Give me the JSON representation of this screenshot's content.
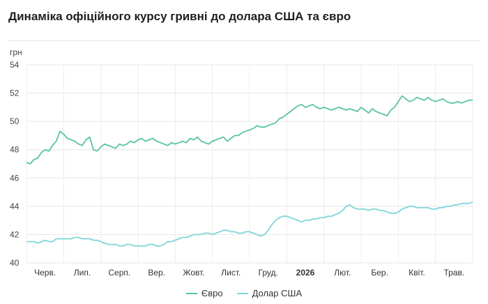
{
  "header": {
    "title": "Динаміка офіційного курсу гривні до долара США та євро"
  },
  "chart_data": {
    "type": "line",
    "title": "Динаміка офіційного курсу гривні до долара США та євро",
    "ylabel": "грн",
    "ylim": [
      40,
      54
    ],
    "yticks": [
      40,
      42,
      44,
      46,
      48,
      50,
      52,
      54
    ],
    "grid": true,
    "legend_position": "bottom",
    "x_months": [
      "Черв.",
      "Лип.",
      "Серп.",
      "Вер.",
      "Жовт.",
      "Лист.",
      "Груд.",
      "2026",
      "Лют.",
      "Бер.",
      "Квіт.",
      "Трав."
    ],
    "x": [
      0,
      0.1,
      0.2,
      0.3,
      0.4,
      0.5,
      0.6,
      0.7,
      0.8,
      0.9,
      1,
      1.1,
      1.2,
      1.3,
      1.4,
      1.5,
      1.6,
      1.7,
      1.8,
      1.9,
      2,
      2.1,
      2.2,
      2.3,
      2.4,
      2.5,
      2.6,
      2.7,
      2.8,
      2.9,
      3,
      3.1,
      3.2,
      3.3,
      3.4,
      3.5,
      3.6,
      3.7,
      3.8,
      3.9,
      4,
      4.1,
      4.2,
      4.3,
      4.4,
      4.5,
      4.6,
      4.7,
      4.8,
      4.9,
      5,
      5.1,
      5.2,
      5.3,
      5.4,
      5.5,
      5.6,
      5.7,
      5.8,
      5.9,
      6,
      6.1,
      6.2,
      6.3,
      6.4,
      6.5,
      6.6,
      6.7,
      6.8,
      6.9,
      7,
      7.1,
      7.2,
      7.3,
      7.4,
      7.5,
      7.6,
      7.7,
      7.8,
      7.9,
      8,
      8.1,
      8.2,
      8.3,
      8.4,
      8.5,
      8.6,
      8.7,
      8.8,
      8.9,
      9,
      9.1,
      9.2,
      9.3,
      9.4,
      9.5,
      9.6,
      9.7,
      9.8,
      9.9,
      10,
      10.1,
      10.2,
      10.3,
      10.4,
      10.5,
      10.6,
      10.7,
      10.8,
      10.9,
      11,
      11.1,
      11.2,
      11.3,
      11.4,
      11.5,
      11.6,
      11.7,
      11.8,
      11.9,
      12
    ],
    "series": [
      {
        "name": "Євро",
        "color": "#5bc4a3",
        "values": [
          47.1,
          47.0,
          47.3,
          47.4,
          47.8,
          48.0,
          47.9,
          48.3,
          48.6,
          49.3,
          49.1,
          48.8,
          48.7,
          48.6,
          48.4,
          48.3,
          48.7,
          48.9,
          48.0,
          47.9,
          48.2,
          48.4,
          48.3,
          48.2,
          48.1,
          48.4,
          48.3,
          48.4,
          48.6,
          48.5,
          48.7,
          48.8,
          48.6,
          48.7,
          48.8,
          48.6,
          48.5,
          48.4,
          48.3,
          48.5,
          48.4,
          48.5,
          48.6,
          48.5,
          48.8,
          48.7,
          48.9,
          48.6,
          48.5,
          48.4,
          48.6,
          48.7,
          48.8,
          48.9,
          48.6,
          48.8,
          49.0,
          49.0,
          49.2,
          49.3,
          49.4,
          49.5,
          49.7,
          49.6,
          49.6,
          49.7,
          49.8,
          49.9,
          50.2,
          50.3,
          50.5,
          50.7,
          50.9,
          51.1,
          51.2,
          51.0,
          51.1,
          51.2,
          51.0,
          50.9,
          51.0,
          50.9,
          50.8,
          50.9,
          51.0,
          50.9,
          50.8,
          50.9,
          50.8,
          50.7,
          51.0,
          50.8,
          50.6,
          50.9,
          50.7,
          50.6,
          50.5,
          50.4,
          50.8,
          51.0,
          51.4,
          51.8,
          51.6,
          51.4,
          51.5,
          51.7,
          51.6,
          51.5,
          51.7,
          51.5,
          51.4,
          51.5,
          51.6,
          51.4,
          51.3,
          51.3,
          51.4,
          51.3,
          51.4,
          51.5,
          51.5
        ]
      },
      {
        "name": "Долар США",
        "color": "#7fd6d9",
        "values": [
          41.5,
          41.5,
          41.5,
          41.4,
          41.5,
          41.6,
          41.5,
          41.5,
          41.7,
          41.7,
          41.7,
          41.7,
          41.7,
          41.8,
          41.8,
          41.7,
          41.7,
          41.7,
          41.6,
          41.6,
          41.5,
          41.4,
          41.3,
          41.3,
          41.3,
          41.2,
          41.2,
          41.3,
          41.3,
          41.2,
          41.2,
          41.2,
          41.2,
          41.3,
          41.3,
          41.2,
          41.2,
          41.3,
          41.5,
          41.5,
          41.6,
          41.7,
          41.8,
          41.8,
          41.9,
          42.0,
          42.0,
          42.0,
          42.1,
          42.1,
          42.0,
          42.1,
          42.2,
          42.3,
          42.3,
          42.2,
          42.2,
          42.1,
          42.1,
          42.2,
          42.2,
          42.1,
          42.0,
          41.9,
          42.0,
          42.3,
          42.7,
          43.0,
          43.2,
          43.3,
          43.3,
          43.2,
          43.1,
          43.0,
          42.9,
          43.0,
          43.0,
          43.1,
          43.1,
          43.2,
          43.2,
          43.3,
          43.3,
          43.4,
          43.5,
          43.7,
          44.0,
          44.1,
          43.9,
          43.8,
          43.8,
          43.8,
          43.7,
          43.8,
          43.8,
          43.7,
          43.7,
          43.6,
          43.5,
          43.5,
          43.6,
          43.8,
          43.9,
          44.0,
          44.0,
          43.9,
          43.9,
          43.9,
          43.9,
          43.8,
          43.8,
          43.9,
          43.9,
          44.0,
          44.0,
          44.1,
          44.1,
          44.2,
          44.2,
          44.2,
          44.3
        ]
      }
    ]
  }
}
